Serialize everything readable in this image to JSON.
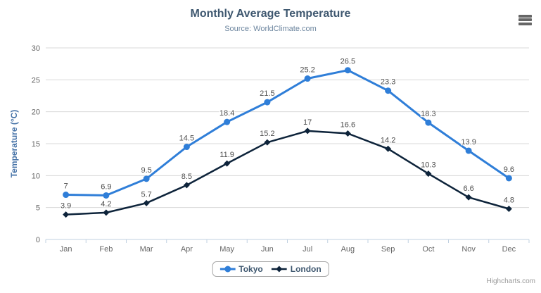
{
  "header": {
    "title": "Monthly Average Temperature",
    "subtitle": "Source: WorldClimate.com"
  },
  "menu": {
    "icon": "hamburger-icon"
  },
  "legend": {
    "items": [
      {
        "name": "Tokyo",
        "color": "#2f7ed8",
        "marker": "circle"
      },
      {
        "name": "London",
        "color": "#0d233a",
        "marker": "diamond"
      }
    ]
  },
  "credits": {
    "label": "Highcharts.com"
  },
  "colors": {
    "title": "#3E576F",
    "subtitle": "#6D869F",
    "axis_title": "#4572A7",
    "axis_labels": "#666666",
    "grid_line": "#d8d8d8",
    "axis_line": "#c0d0e0",
    "data_label": "#4d4d4d",
    "legend_text": "#3E576F",
    "legend_border": "#a8a8a8",
    "credits": "#999999",
    "menu_icon": "#666666",
    "background": "#ffffff"
  },
  "chart_data": {
    "type": "line",
    "title": "Monthly Average Temperature",
    "subtitle": "Source: WorldClimate.com",
    "categories": [
      "Jan",
      "Feb",
      "Mar",
      "Apr",
      "May",
      "Jun",
      "Jul",
      "Aug",
      "Sep",
      "Oct",
      "Nov",
      "Dec"
    ],
    "series": [
      {
        "name": "Tokyo",
        "color": "#2f7ed8",
        "marker": "circle",
        "line_width": 3,
        "values": [
          7,
          6.9,
          9.5,
          14.5,
          18.4,
          21.5,
          25.2,
          26.5,
          23.3,
          18.3,
          13.9,
          9.6
        ]
      },
      {
        "name": "London",
        "color": "#0d233a",
        "marker": "diamond",
        "line_width": 2.5,
        "values": [
          3.9,
          4.2,
          5.7,
          8.5,
          11.9,
          15.2,
          17,
          16.6,
          14.2,
          10.3,
          6.6,
          4.8
        ]
      }
    ],
    "xlabel": "",
    "ylabel": "Temperature (°C)",
    "ylim": [
      0,
      30
    ],
    "ytick_step": 5,
    "grid": true,
    "data_labels": true,
    "legend_position": "bottom"
  }
}
